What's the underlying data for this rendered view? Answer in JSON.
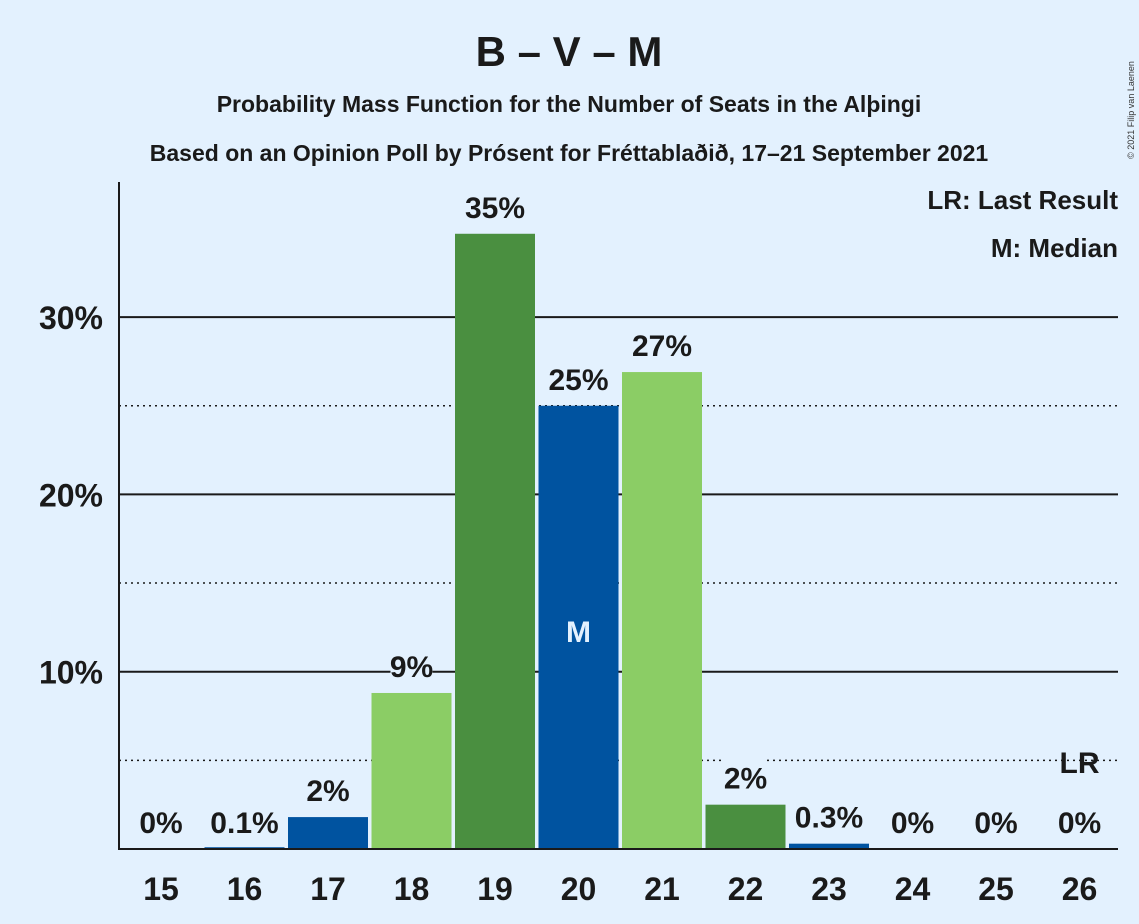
{
  "chart_data": {
    "type": "bar",
    "title": "B – V – M",
    "subtitle1": "Probability Mass Function for the Number of Seats in the Alþingi",
    "subtitle2": "Based on an Opinion Poll by Prósent for Fréttablaðið, 17–21 September 2021",
    "legend_lr": "LR: Last Result",
    "legend_m": "M: Median",
    "copyright": "© 2021 Filip van Laenen",
    "categories": [
      "15",
      "16",
      "17",
      "18",
      "19",
      "20",
      "21",
      "22",
      "23",
      "24",
      "25",
      "26"
    ],
    "values": [
      0,
      0.1,
      1.8,
      8.8,
      34.7,
      25.0,
      26.9,
      2.5,
      0.3,
      0,
      0,
      0
    ],
    "value_labels": [
      "0%",
      "0.1%",
      "2%",
      "9%",
      "35%",
      "25%",
      "27%",
      "2%",
      "0.3%",
      "0%",
      "0%",
      "0%"
    ],
    "bar_colors": [
      "#0053a0",
      "#0053a0",
      "#0053a0",
      "#8bcd65",
      "#4a8f40",
      "#0053a0",
      "#8bcd65",
      "#4a8f40",
      "#0053a0",
      "#0053a0",
      "#0053a0",
      "#0053a0"
    ],
    "y_ticks": [
      10,
      20,
      30
    ],
    "y_tick_labels": [
      "10%",
      "20%",
      "30%"
    ],
    "y_minor_ticks": [
      5,
      15,
      25
    ],
    "ylim": [
      0,
      37.5
    ],
    "median_category": "20",
    "median_marker": "M",
    "last_result_category": "26",
    "last_result_marker": "LR",
    "label_color": "#1a1a1a",
    "median_text_color": "#e3f1fe"
  }
}
